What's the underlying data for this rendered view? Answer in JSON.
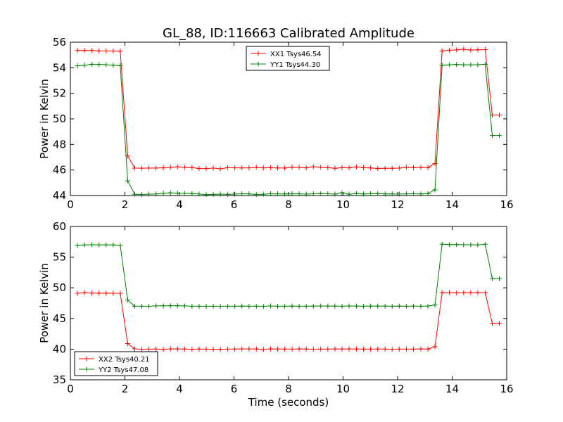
{
  "title": "GL_88, ID:116663 Calibrated Amplitude",
  "chart_data": [
    {
      "type": "line",
      "ylabel": "Power in Kelvin",
      "xlabel": "",
      "xlim": [
        0,
        16
      ],
      "ylim": [
        44,
        56
      ],
      "xticks": [
        0,
        2,
        4,
        6,
        8,
        10,
        12,
        14,
        16
      ],
      "yticks": [
        44,
        46,
        48,
        50,
        52,
        54,
        56
      ],
      "legend_loc": "upper-center",
      "grid": false,
      "x": [
        0.26,
        0.52,
        0.79,
        1.05,
        1.31,
        1.57,
        1.83,
        2.1,
        2.36,
        2.62,
        2.88,
        3.14,
        3.41,
        3.67,
        3.93,
        4.19,
        4.46,
        4.72,
        4.98,
        5.24,
        5.5,
        5.77,
        6.03,
        6.29,
        6.55,
        6.82,
        7.08,
        7.34,
        7.6,
        7.86,
        8.13,
        8.39,
        8.65,
        8.91,
        9.18,
        9.44,
        9.7,
        9.96,
        10.22,
        10.49,
        10.75,
        11.01,
        11.27,
        11.54,
        11.8,
        12.06,
        12.32,
        12.58,
        12.85,
        13.11,
        13.37,
        13.63,
        13.9,
        14.16,
        14.42,
        14.68,
        14.94,
        15.21,
        15.47,
        15.73
      ],
      "series": [
        {
          "name": "XX1 Tsys46.54",
          "color": "#ff0000",
          "values": [
            55.35,
            55.36,
            55.35,
            55.32,
            55.31,
            55.31,
            55.29,
            47.1,
            46.15,
            46.14,
            46.15,
            46.15,
            46.17,
            46.2,
            46.24,
            46.2,
            46.18,
            46.12,
            46.11,
            46.15,
            46.09,
            46.18,
            46.17,
            46.16,
            46.17,
            46.2,
            46.17,
            46.18,
            46.16,
            46.15,
            46.22,
            46.2,
            46.17,
            46.25,
            46.21,
            46.18,
            46.13,
            46.18,
            46.17,
            46.24,
            46.18,
            46.16,
            46.12,
            46.13,
            46.13,
            46.15,
            46.22,
            46.18,
            46.2,
            46.19,
            46.5,
            55.31,
            55.37,
            55.4,
            55.45,
            55.39,
            55.4,
            55.42,
            50.3,
            50.3
          ]
        },
        {
          "name": "YY1 Tsys44.30",
          "color": "#008000",
          "values": [
            54.15,
            54.2,
            54.27,
            54.26,
            54.24,
            54.2,
            54.16,
            45.15,
            44.1,
            44.08,
            44.11,
            44.12,
            44.17,
            44.21,
            44.18,
            44.17,
            44.15,
            44.12,
            44.07,
            44.09,
            44.11,
            44.09,
            44.11,
            44.14,
            44.13,
            44.08,
            44.1,
            44.14,
            44.13,
            44.12,
            44.14,
            44.13,
            44.11,
            44.14,
            44.15,
            44.14,
            44.11,
            44.22,
            44.1,
            44.16,
            44.12,
            44.14,
            44.15,
            44.12,
            44.13,
            44.11,
            44.13,
            44.14,
            44.12,
            44.15,
            44.45,
            54.2,
            54.23,
            54.26,
            54.23,
            54.23,
            54.24,
            54.27,
            48.7,
            48.7
          ]
        }
      ]
    },
    {
      "type": "line",
      "ylabel": "Power in Kelvin",
      "xlabel": "Time (seconds)",
      "xlim": [
        0,
        16
      ],
      "ylim": [
        35,
        60
      ],
      "xticks": [
        0,
        2,
        4,
        6,
        8,
        10,
        12,
        14,
        16
      ],
      "yticks": [
        35,
        40,
        45,
        50,
        55,
        60
      ],
      "legend_loc": "lower-left",
      "grid": false,
      "x": [
        0.26,
        0.52,
        0.79,
        1.05,
        1.31,
        1.57,
        1.83,
        2.1,
        2.36,
        2.62,
        2.88,
        3.14,
        3.41,
        3.67,
        3.93,
        4.19,
        4.46,
        4.72,
        4.98,
        5.24,
        5.5,
        5.77,
        6.03,
        6.29,
        6.55,
        6.82,
        7.08,
        7.34,
        7.6,
        7.86,
        8.13,
        8.39,
        8.65,
        8.91,
        9.18,
        9.44,
        9.7,
        9.96,
        10.22,
        10.49,
        10.75,
        11.01,
        11.27,
        11.54,
        11.8,
        12.06,
        12.32,
        12.58,
        12.85,
        13.11,
        13.37,
        13.63,
        13.9,
        14.16,
        14.42,
        14.68,
        14.94,
        15.21,
        15.47,
        15.73
      ],
      "series": [
        {
          "name": "XX2 Tsys40.21",
          "color": "#ff0000",
          "values": [
            49.1,
            49.2,
            49.15,
            49.12,
            49.12,
            49.1,
            49.1,
            40.9,
            40.05,
            39.98,
            40.0,
            40.02,
            39.96,
            40.05,
            40.03,
            40.02,
            39.98,
            40.01,
            40.0,
            39.97,
            39.96,
            40.0,
            40.01,
            40.03,
            40.04,
            40.02,
            39.98,
            40.04,
            40.02,
            40.01,
            40.0,
            40.03,
            40.02,
            39.99,
            40.01,
            40.0,
            40.03,
            40.02,
            40.03,
            40.02,
            40.01,
            40.0,
            40.02,
            40.01,
            39.98,
            40.02,
            40.0,
            40.01,
            40.03,
            40.02,
            40.4,
            49.2,
            49.22,
            49.18,
            49.2,
            49.21,
            49.2,
            49.22,
            44.2,
            44.2
          ]
        },
        {
          "name": "YY2 Tsys47.08",
          "color": "#008000",
          "values": [
            56.9,
            57.0,
            57.02,
            57.0,
            57.0,
            57.0,
            56.9,
            48.0,
            47.0,
            47.0,
            46.98,
            47.05,
            47.06,
            47.08,
            47.08,
            47.05,
            47.0,
            47.0,
            46.98,
            47.0,
            46.98,
            47.0,
            47.0,
            47.02,
            47.0,
            47.0,
            46.98,
            47.04,
            47.0,
            47.0,
            47.02,
            47.0,
            47.0,
            47.01,
            47.04,
            47.02,
            47.03,
            47.0,
            47.04,
            47.02,
            47.0,
            47.03,
            47.02,
            47.01,
            47.0,
            47.02,
            47.0,
            47.01,
            47.0,
            47.03,
            47.2,
            57.1,
            57.05,
            57.05,
            57.02,
            57.02,
            57.0,
            57.1,
            51.5,
            51.5
          ]
        }
      ]
    }
  ]
}
